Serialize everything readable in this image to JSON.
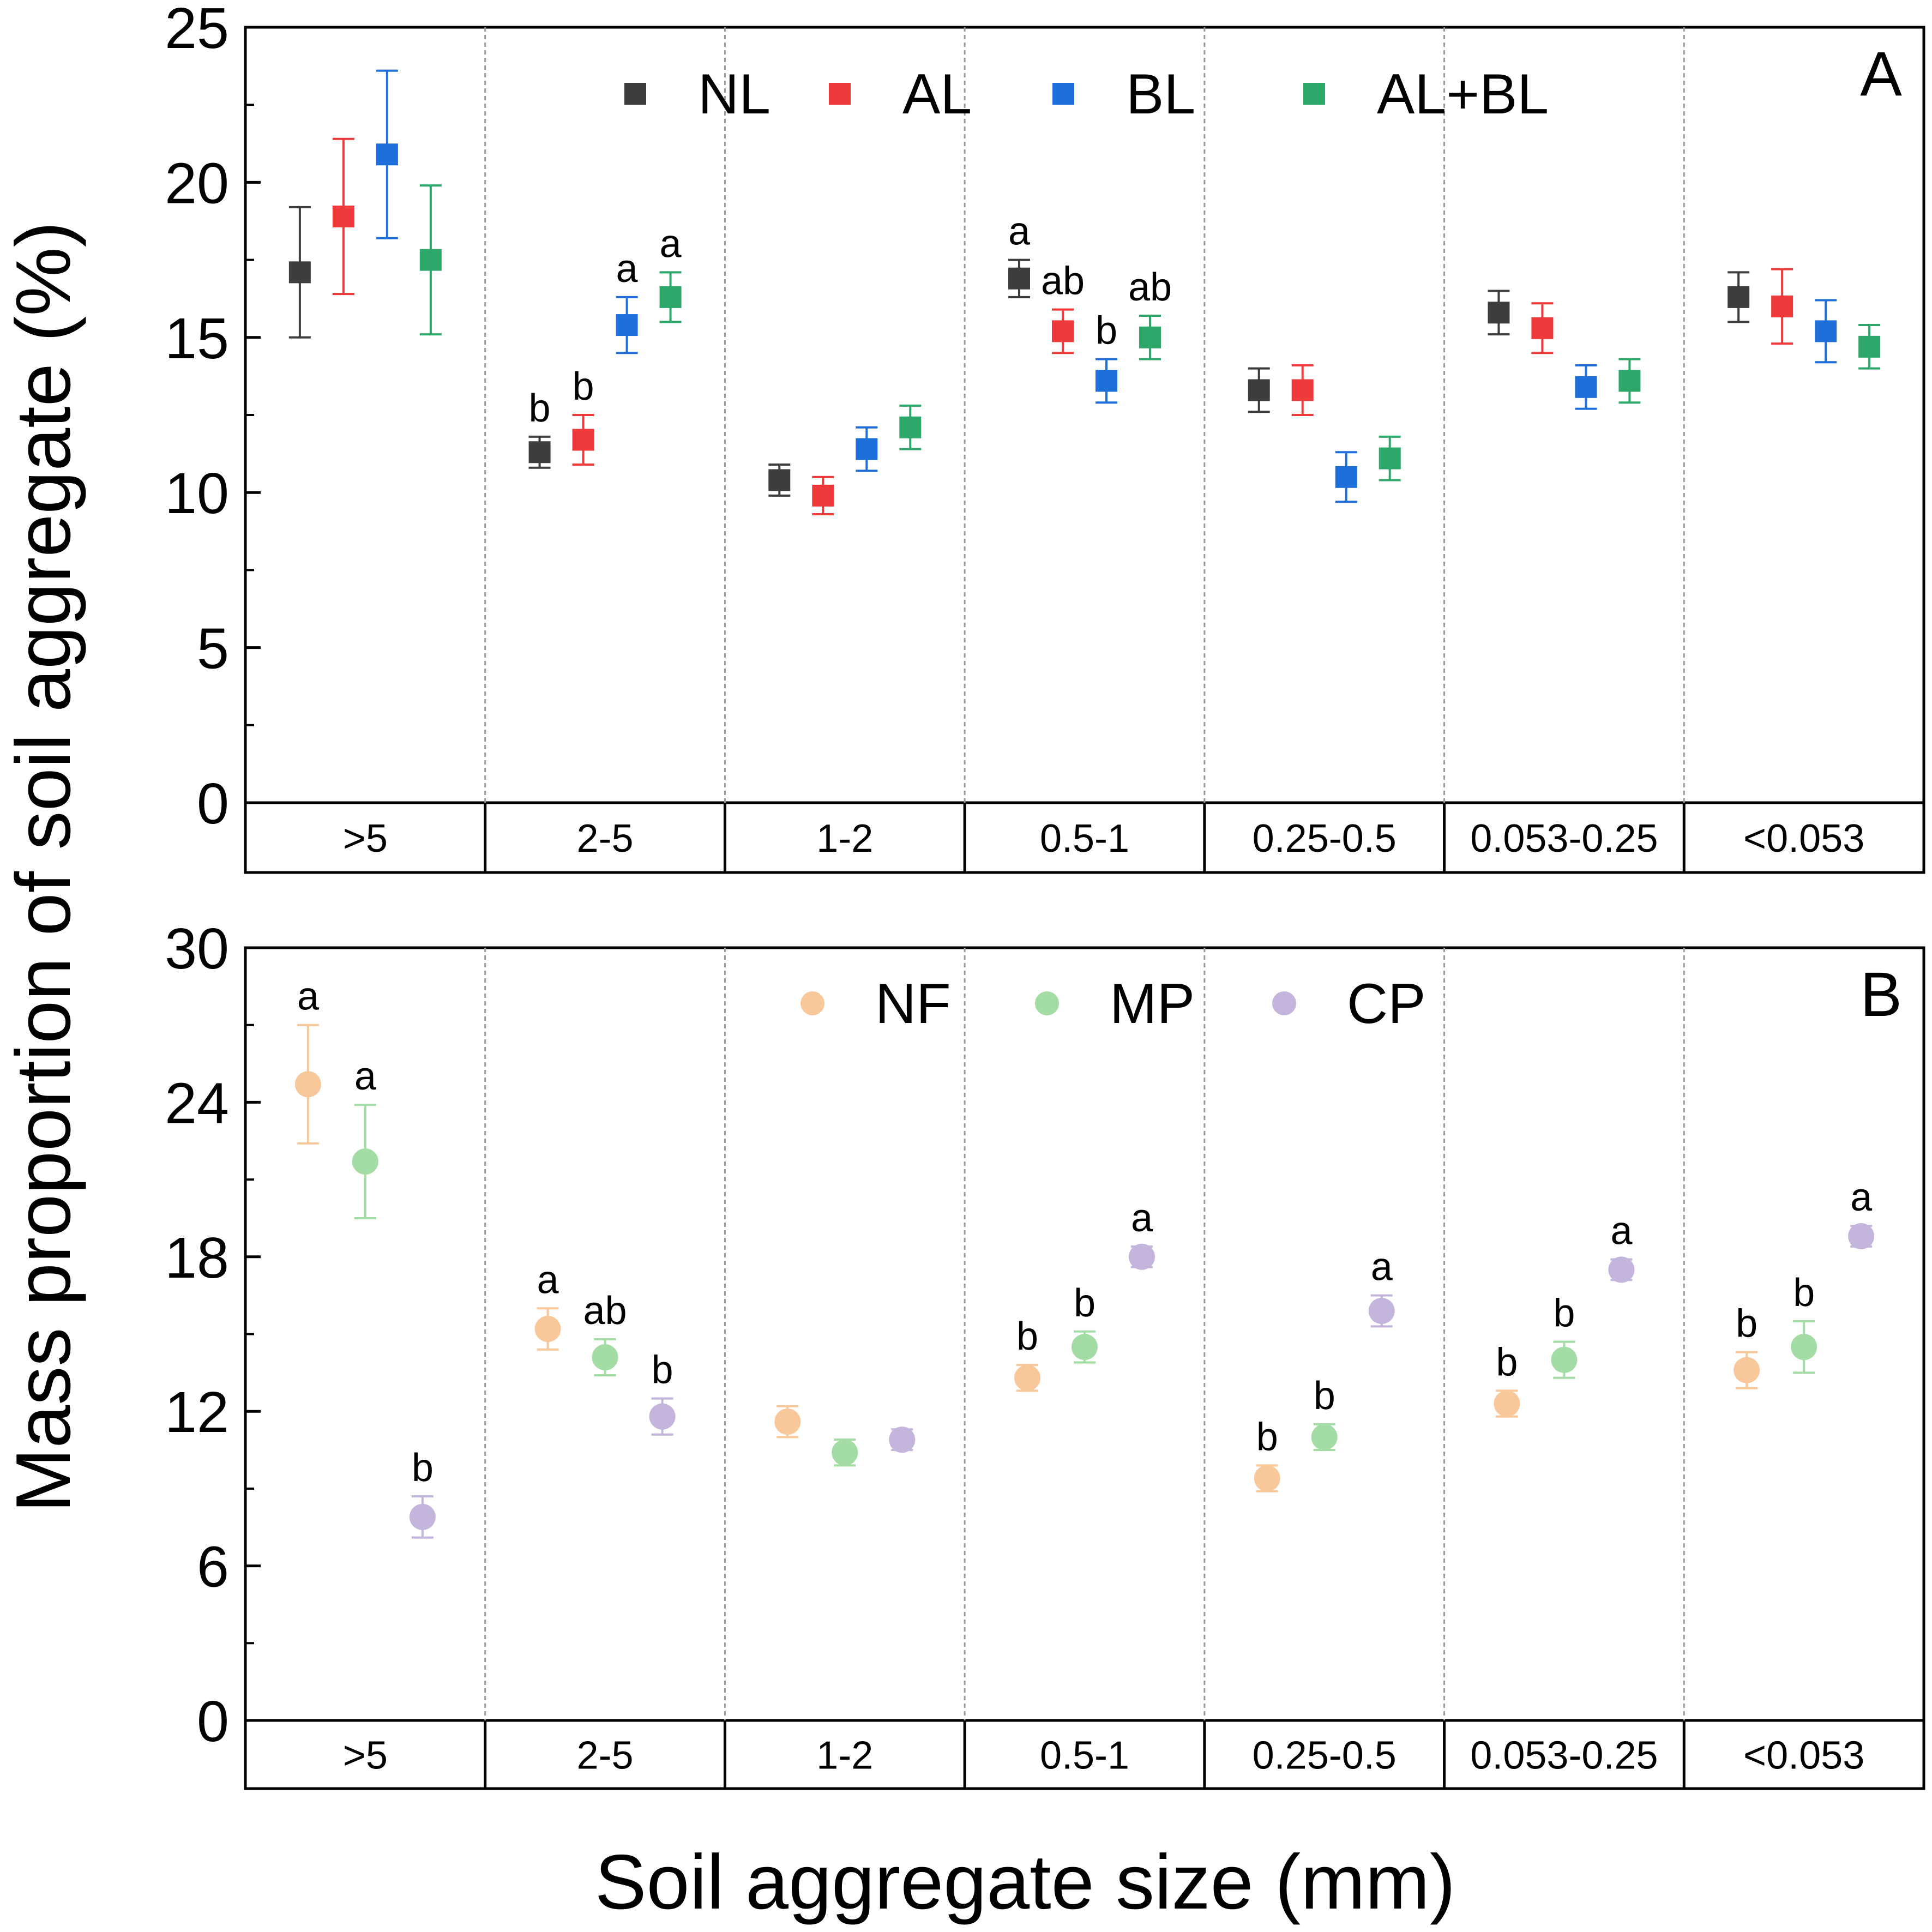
{
  "y_axis_label": "Mass proportion of soil aggregate (%)",
  "x_axis_label": "Soil aggregate size (mm)",
  "colors": {
    "NL": "#3d3d3d",
    "AL": "#ee3a3a",
    "BL": "#1f6fdb",
    "AL+BL": "#2ea86a",
    "NF": "#f9c89a",
    "MP": "#a3dca4",
    "CP": "#c3b5db"
  },
  "chart_data": [
    {
      "type": "scatter",
      "panel_label": "A",
      "categories": [
        ">5",
        "2-5",
        "1-2",
        "0.5-1",
        "0.25-0.5",
        "0.053-0.25",
        "<0.053"
      ],
      "ylim": [
        0,
        25
      ],
      "yticks": [
        0,
        5,
        10,
        15,
        20,
        25
      ],
      "grid": false,
      "legend_position": "top",
      "marker": "square",
      "series": [
        {
          "name": "NL",
          "values": [
            17.1,
            11.3,
            10.4,
            16.9,
            13.3,
            15.8,
            16.3
          ],
          "errors": [
            2.1,
            0.5,
            0.5,
            0.6,
            0.7,
            0.7,
            0.8
          ],
          "letters": [
            "",
            "b",
            "",
            "a",
            "",
            "",
            ""
          ]
        },
        {
          "name": "AL",
          "values": [
            18.9,
            11.7,
            9.9,
            15.2,
            13.3,
            15.3,
            16.0
          ],
          "errors": [
            2.5,
            0.8,
            0.6,
            0.7,
            0.8,
            0.8,
            1.2
          ],
          "letters": [
            "",
            "b",
            "",
            "ab",
            "",
            "",
            ""
          ]
        },
        {
          "name": "BL",
          "values": [
            20.9,
            15.4,
            11.4,
            13.6,
            10.5,
            13.4,
            15.2
          ],
          "errors": [
            2.7,
            0.9,
            0.7,
            0.7,
            0.8,
            0.7,
            1.0
          ],
          "letters": [
            "",
            "a",
            "",
            "b",
            "",
            "",
            ""
          ]
        },
        {
          "name": "AL+BL",
          "values": [
            17.5,
            16.3,
            12.1,
            15.0,
            11.1,
            13.6,
            14.7
          ],
          "errors": [
            2.4,
            0.8,
            0.7,
            0.7,
            0.7,
            0.7,
            0.7
          ],
          "letters": [
            "",
            "a",
            "",
            "ab",
            "",
            "",
            ""
          ]
        }
      ]
    },
    {
      "type": "scatter",
      "panel_label": "B",
      "categories": [
        ">5",
        "2-5",
        "1-2",
        "0.5-1",
        "0.25-0.5",
        "0.053-0.25",
        "<0.053"
      ],
      "ylim": [
        0,
        30
      ],
      "yticks": [
        0,
        6,
        12,
        18,
        24,
        30
      ],
      "grid": false,
      "legend_position": "top",
      "marker": "circle",
      "series": [
        {
          "name": "NF",
          "values": [
            24.7,
            15.2,
            11.6,
            13.3,
            9.4,
            12.3,
            13.6
          ],
          "errors": [
            2.3,
            0.8,
            0.6,
            0.5,
            0.5,
            0.5,
            0.7
          ],
          "letters": [
            "a",
            "a",
            "",
            "b",
            "b",
            "b",
            "b"
          ]
        },
        {
          "name": "MP",
          "values": [
            21.7,
            14.1,
            10.4,
            14.5,
            11.0,
            14.0,
            14.5
          ],
          "errors": [
            2.2,
            0.7,
            0.5,
            0.6,
            0.5,
            0.7,
            1.0
          ],
          "letters": [
            "a",
            "ab",
            "",
            "b",
            "b",
            "b",
            "b"
          ]
        },
        {
          "name": "CP",
          "values": [
            7.9,
            11.8,
            10.9,
            18.0,
            15.9,
            17.5,
            18.8
          ],
          "errors": [
            0.8,
            0.7,
            0.4,
            0.4,
            0.6,
            0.4,
            0.4
          ],
          "letters": [
            "b",
            "b",
            "",
            "a",
            "a",
            "a",
            "a"
          ]
        }
      ]
    }
  ]
}
